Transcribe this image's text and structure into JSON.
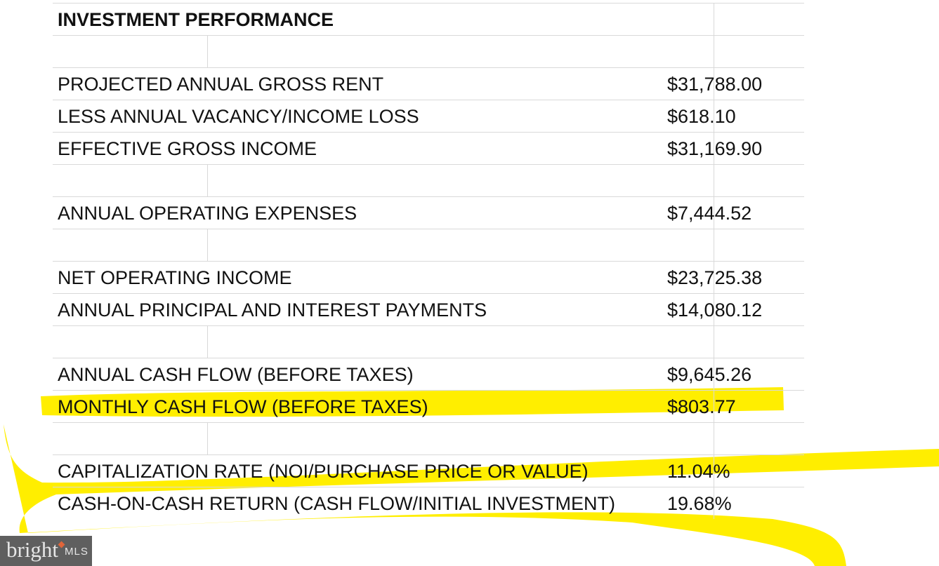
{
  "title": "INVESTMENT PERFORMANCE",
  "rows": [
    {
      "label": "",
      "value": ""
    },
    {
      "label": "PROJECTED ANNUAL GROSS RENT",
      "value": "$31,788.00"
    },
    {
      "label": "LESS ANNUAL VACANCY/INCOME LOSS",
      "value": "$618.10"
    },
    {
      "label": "EFFECTIVE GROSS INCOME",
      "value": "$31,169.90"
    },
    {
      "label": "",
      "value": ""
    },
    {
      "label": "ANNUAL OPERATING EXPENSES",
      "value": "$7,444.52"
    },
    {
      "label": "",
      "value": ""
    },
    {
      "label": "NET OPERATING INCOME",
      "value": "$23,725.38"
    },
    {
      "label": "ANNUAL PRINCIPAL AND INTEREST PAYMENTS",
      "value": "$14,080.12"
    },
    {
      "label": "",
      "value": ""
    },
    {
      "label": "ANNUAL CASH FLOW (BEFORE TAXES)",
      "value": "$9,645.26"
    },
    {
      "label": "MONTHLY CASH FLOW (BEFORE TAXES)",
      "value": "$803.77"
    },
    {
      "label": "",
      "value": ""
    },
    {
      "label": "CAPITALIZATION RATE (NOI/PURCHASE PRICE OR VALUE)",
      "value": "11.04%"
    },
    {
      "label": "CASH-ON-CASH RETURN (CASH FLOW/INITIAL INVESTMENT)",
      "value": "19.68%"
    }
  ],
  "highlight_color": "#ffee00",
  "logo": {
    "brand": "bright",
    "suffix": "MLS"
  }
}
